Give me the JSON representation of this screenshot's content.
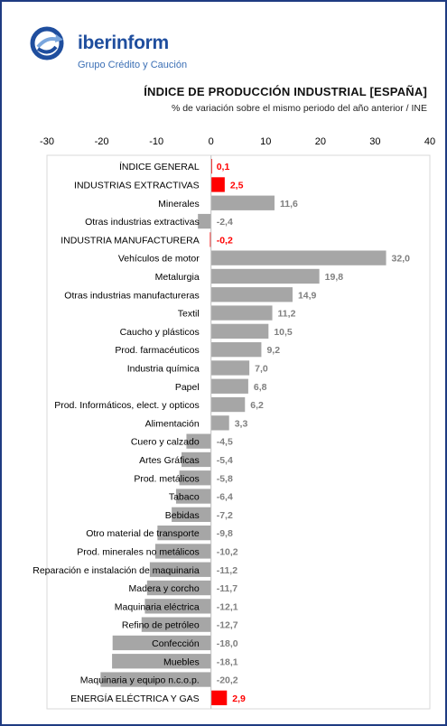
{
  "logo": {
    "brand": "iberinform",
    "tagline": "Grupo Crédito y Caución"
  },
  "colors": {
    "highlight": "#ff0000",
    "bar": "#a6a6a6",
    "value_text": "#7f7f7f",
    "brand": "#1f4e9e"
  },
  "chart_data": {
    "type": "bar",
    "orientation": "horizontal",
    "title": "ÍNDICE DE PRODUCCIÓN INDUSTRIAL [ESPAÑA]",
    "subtitle": "% de variación sobre el mismo periodo del año anterior / INE",
    "xlim": [
      -30,
      40
    ],
    "xticks": [
      "-30",
      "-20",
      "-10",
      "0",
      "10",
      "20",
      "30",
      "40"
    ],
    "grid": false,
    "categories": [
      "ÍNDICE GENERAL",
      "INDUSTRIAS EXTRACTIVAS",
      "Minerales",
      "Otras industrias extractivas",
      "INDUSTRIA MANUFACTURERA",
      "Vehículos de motor",
      "Metalurgia",
      "Otras industrias manufactureras",
      "Textil",
      "Caucho y plásticos",
      "Prod. farmacéuticos",
      "Industria química",
      "Papel",
      "Prod. Informáticos, elect. y opticos",
      "Alimentación",
      "Cuero y calzado",
      "Artes Gráficas",
      "Prod. metálicos",
      "Tabaco",
      "Bebidas",
      "Otro material de transporte",
      "Prod. minerales no metálicos",
      "Reparación e instalación de maquinaria",
      "Madera y corcho",
      "Maquinaria eléctrica",
      "Refino de petróleo",
      "Confección",
      "Muebles",
      "Maquinaria y equipo n.c.o.p.",
      "ENERGÍA ELÉCTRICA Y GAS"
    ],
    "values": [
      0.1,
      2.5,
      11.6,
      -2.4,
      -0.2,
      32.0,
      19.8,
      14.9,
      11.2,
      10.5,
      9.2,
      7.0,
      6.8,
      6.2,
      3.3,
      -4.5,
      -5.4,
      -5.8,
      -6.4,
      -7.2,
      -9.8,
      -10.2,
      -11.2,
      -11.7,
      -12.1,
      -12.7,
      -18.0,
      -18.1,
      -20.2,
      2.9
    ],
    "value_labels": [
      "0,1",
      "2,5",
      "11,6",
      "-2,4",
      "-0,2",
      "32,0",
      "19,8",
      "14,9",
      "11,2",
      "10,5",
      "9,2",
      "7,0",
      "6,8",
      "6,2",
      "3,3",
      "-4,5",
      "-5,4",
      "-5,8",
      "-6,4",
      "-7,2",
      "-9,8",
      "-10,2",
      "-11,2",
      "-11,7",
      "-12,1",
      "-12,7",
      "-18,0",
      "-18,1",
      "-20,2",
      "2,9"
    ],
    "highlighted": [
      "ÍNDICE GENERAL",
      "INDUSTRIAS EXTRACTIVAS",
      "INDUSTRIA MANUFACTURERA",
      "ENERGÍA ELÉCTRICA Y GAS"
    ]
  }
}
